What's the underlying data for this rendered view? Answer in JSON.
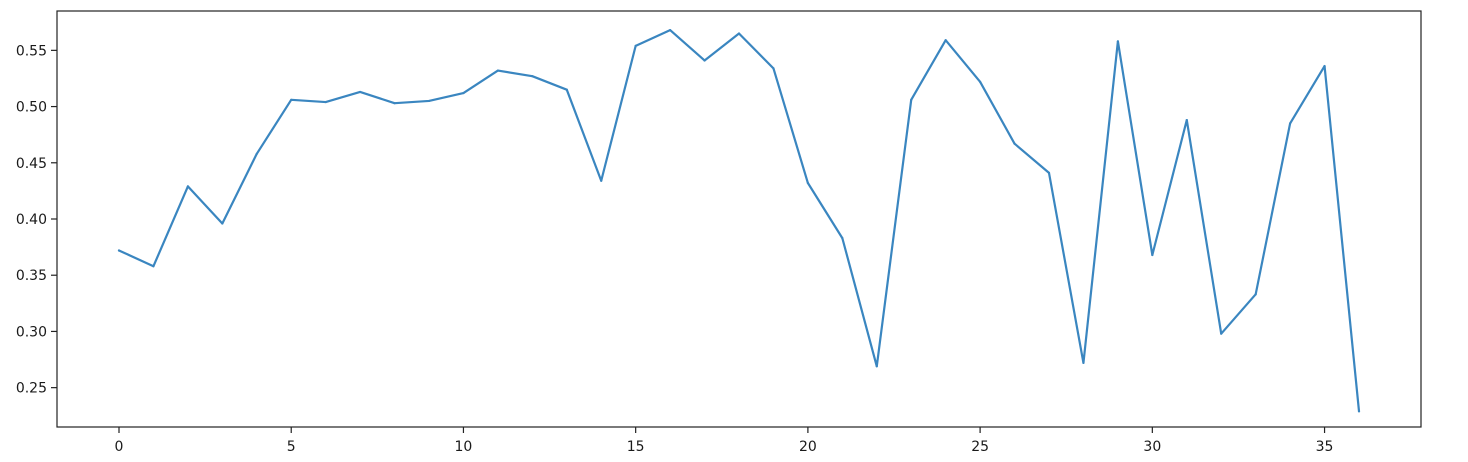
{
  "chart_data": {
    "type": "line",
    "title": "",
    "xlabel": "",
    "ylabel": "",
    "xlim": [
      -1.8,
      37.8
    ],
    "ylim": [
      0.215,
      0.585
    ],
    "x_ticks": [
      0,
      5,
      10,
      15,
      20,
      25,
      30,
      35
    ],
    "x_tick_labels": [
      "0",
      "5",
      "10",
      "15",
      "20",
      "25",
      "30",
      "35"
    ],
    "y_ticks": [
      0.25,
      0.3,
      0.35,
      0.4,
      0.45,
      0.5,
      0.55
    ],
    "y_tick_labels": [
      "0.25",
      "0.30",
      "0.35",
      "0.40",
      "0.45",
      "0.50",
      "0.55"
    ],
    "grid": false,
    "legend": "none",
    "series": [
      {
        "color": "#3a86c0",
        "x": [
          0,
          1,
          2,
          3,
          4,
          5,
          6,
          7,
          8,
          9,
          10,
          11,
          12,
          13,
          14,
          15,
          16,
          17,
          18,
          19,
          20,
          21,
          22,
          23,
          24,
          25,
          26,
          27,
          28,
          29,
          30,
          31,
          32,
          33,
          34,
          35,
          36
        ],
        "values": [
          0.372,
          0.358,
          0.429,
          0.396,
          0.458,
          0.506,
          0.504,
          0.513,
          0.503,
          0.505,
          0.512,
          0.532,
          0.527,
          0.515,
          0.434,
          0.554,
          0.568,
          0.541,
          0.565,
          0.534,
          0.432,
          0.383,
          0.269,
          0.506,
          0.559,
          0.522,
          0.467,
          0.441,
          0.272,
          0.558,
          0.368,
          0.488,
          0.298,
          0.333,
          0.485,
          0.536,
          0.229
        ]
      }
    ]
  }
}
